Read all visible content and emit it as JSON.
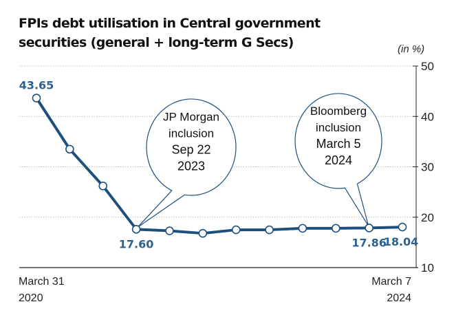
{
  "chart_data": {
    "type": "line",
    "title": "FPIs debt utilisation in Central government securities (general + long-term G Secs)",
    "unit_label": "(in %)",
    "ylim": [
      10,
      50
    ],
    "yticks": [
      10,
      20,
      30,
      40,
      50
    ],
    "grid": true,
    "x_start_label": [
      "March 31",
      "2020"
    ],
    "x_end_label": [
      "March 7",
      "2024"
    ],
    "values": [
      43.65,
      33.5,
      26.2,
      17.6,
      17.3,
      16.8,
      17.5,
      17.5,
      17.8,
      17.8,
      17.86,
      18.04
    ],
    "data_labels": [
      {
        "index": 0,
        "text": "43.65",
        "pos": "above"
      },
      {
        "index": 3,
        "text": "17.60",
        "pos": "below"
      },
      {
        "index": 10,
        "text": "17.86",
        "pos": "below"
      },
      {
        "index": 11,
        "text": "18.04",
        "pos": "below"
      }
    ],
    "annotations": [
      {
        "index": 3,
        "lines": [
          "JP Morgan",
          "inclusion",
          "Sep 22",
          "2023"
        ]
      },
      {
        "index": 10,
        "lines": [
          "Bloomberg",
          "inclusion",
          "March 5",
          "2024"
        ]
      }
    ],
    "colors": {
      "line": "#1d4f7c",
      "label": "#2b6290",
      "grid": "#bbbbbb"
    }
  }
}
